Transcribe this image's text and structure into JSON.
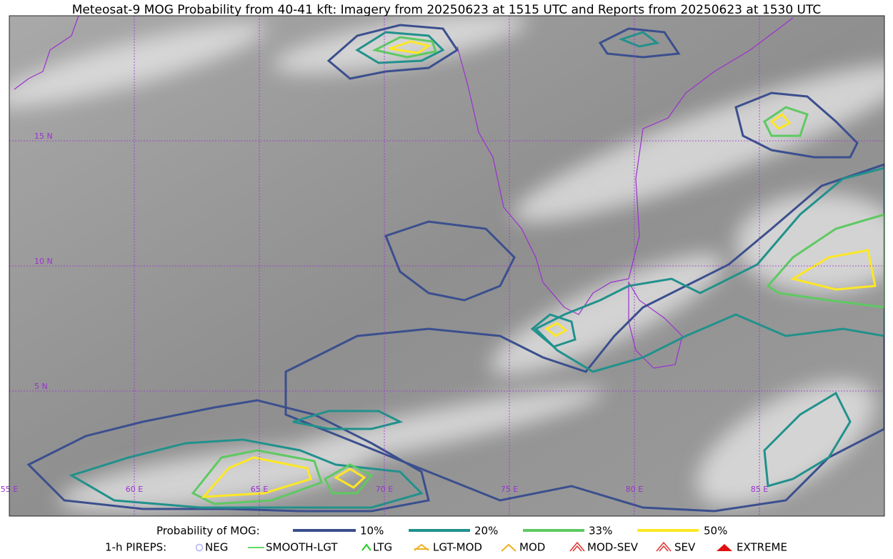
{
  "title": "Meteosat-9 MOG Probability from 40-41 kft: Imagery from 20250623 at 1515 UTC and Reports from 20250623 at 1530 UTC",
  "graticule": {
    "latitudes": [
      "15 N",
      "10 N",
      "5 N"
    ],
    "longitudes": [
      "55 E",
      "60 E",
      "65 E",
      "70 E",
      "75 E",
      "80 E",
      "85 E"
    ]
  },
  "legend": {
    "probability_title": "Probability of MOG:",
    "levels": [
      "10%",
      "20%",
      "33%",
      "50%"
    ],
    "pireps_title": "1-h PIREPS:",
    "pireps": [
      "NEG",
      "SMOOTH-LGT",
      "LTG",
      "LGT-MOD",
      "MOD",
      "MOD-SEV",
      "SEV",
      "EXTREME"
    ]
  }
}
